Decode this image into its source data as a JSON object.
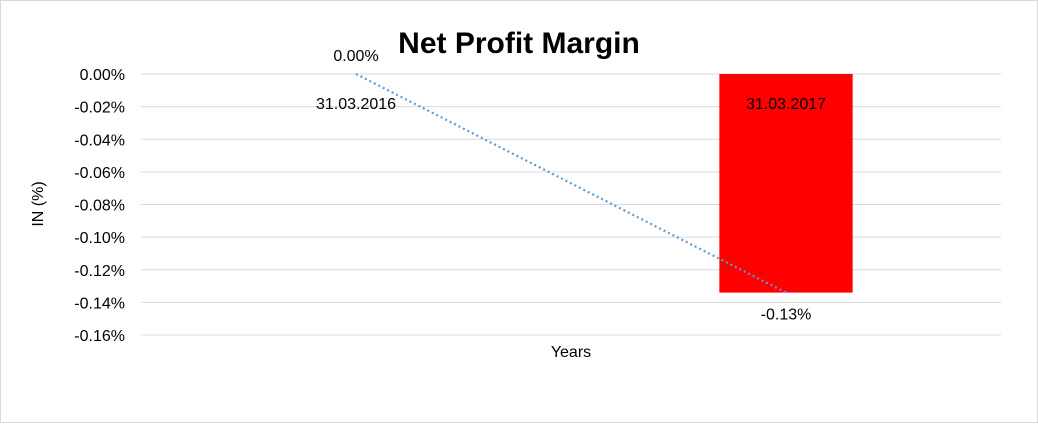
{
  "chart_data": {
    "type": "bar",
    "title": "Net Profit Margin",
    "xlabel": "Years",
    "ylabel": "IN (%)",
    "categories": [
      "31.03.2016",
      "31.03.2017"
    ],
    "values": [
      0.0,
      -0.134
    ],
    "data_labels": [
      "0.00%",
      "-0.13%"
    ],
    "ylim": [
      -0.16,
      0.0
    ],
    "y_ticks": [
      0.0,
      -0.02,
      -0.04,
      -0.06,
      -0.08,
      -0.1,
      -0.12,
      -0.14,
      -0.16
    ],
    "y_tick_labels": [
      "0.00%",
      "-0.02%",
      "-0.04%",
      "-0.06%",
      "-0.08%",
      "-0.10%",
      "-0.12%",
      "-0.14%",
      "-0.16%"
    ],
    "bar_color": "#ff0000",
    "trendline": {
      "type": "linear",
      "style": "dotted",
      "color": "#5b9bd5"
    },
    "grid": true,
    "legend": "none"
  }
}
